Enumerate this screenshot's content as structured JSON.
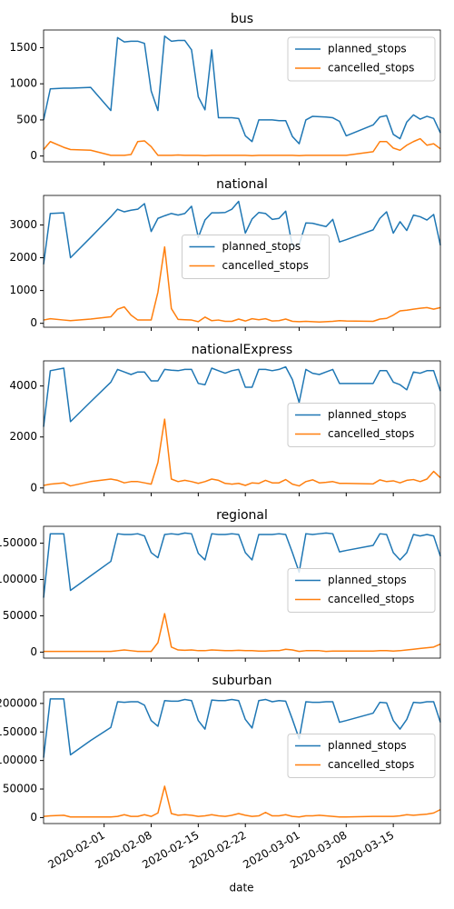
{
  "chart_data": {
    "type": "line",
    "xlabel": "date",
    "x": [
      "2020-01-23",
      "2020-01-24",
      "2020-01-26",
      "2020-01-27",
      "2020-01-30",
      "2020-02-02",
      "2020-02-03",
      "2020-02-04",
      "2020-02-05",
      "2020-02-06",
      "2020-02-07",
      "2020-02-08",
      "2020-02-09",
      "2020-02-10",
      "2020-02-11",
      "2020-02-12",
      "2020-02-13",
      "2020-02-14",
      "2020-02-15",
      "2020-02-16",
      "2020-02-17",
      "2020-02-18",
      "2020-02-19",
      "2020-02-20",
      "2020-02-21",
      "2020-02-22",
      "2020-02-23",
      "2020-02-24",
      "2020-02-25",
      "2020-02-26",
      "2020-02-27",
      "2020-02-28",
      "2020-02-29",
      "2020-03-01",
      "2020-03-02",
      "2020-03-03",
      "2020-03-04",
      "2020-03-05",
      "2020-03-06",
      "2020-03-07",
      "2020-03-08",
      "2020-03-12",
      "2020-03-13",
      "2020-03-14",
      "2020-03-15",
      "2020-03-16",
      "2020-03-17",
      "2020-03-18",
      "2020-03-19",
      "2020-03-20",
      "2020-03-21",
      "2020-03-22"
    ],
    "xlim": [
      "2020-01-23",
      "2020-03-22"
    ],
    "xticks": [
      "2020-02-01",
      "2020-02-08",
      "2020-02-15",
      "2020-02-22",
      "2020-03-01",
      "2020-03-08",
      "2020-03-15"
    ],
    "panels": [
      {
        "title": "bus",
        "ylim": [
          -80,
          1745
        ],
        "yticks": [
          0,
          500,
          1000,
          1500
        ],
        "legend": "upper right",
        "series": [
          {
            "name": "planned_stops",
            "color": "#1f77b4",
            "values": [
              500,
              930,
              940,
              940,
              950,
              630,
              1640,
              1580,
              1590,
              1590,
              1560,
              900,
              630,
              1660,
              1590,
              1600,
              1600,
              1470,
              820,
              640,
              1470,
              530,
              530,
              530,
              520,
              280,
              200,
              500,
              500,
              500,
              490,
              490,
              270,
              170,
              500,
              550,
              545,
              540,
              530,
              480,
              280,
              430,
              540,
              560,
              300,
              240,
              470,
              570,
              510,
              550,
              520,
              320
            ]
          },
          {
            "name": "cancelled_stops",
            "color": "#ff7f0e",
            "values": [
              90,
              200,
              120,
              90,
              80,
              10,
              10,
              10,
              20,
              200,
              210,
              130,
              10,
              10,
              10,
              15,
              10,
              10,
              10,
              5,
              10,
              10,
              10,
              10,
              10,
              10,
              5,
              10,
              10,
              10,
              10,
              10,
              10,
              5,
              10,
              10,
              10,
              10,
              10,
              10,
              10,
              60,
              200,
              200,
              110,
              80,
              150,
              200,
              240,
              150,
              170,
              100
            ]
          }
        ]
      },
      {
        "title": "national",
        "ylim": [
          -120,
          3900
        ],
        "yticks": [
          0,
          1000,
          2000,
          3000
        ],
        "legend": "center",
        "series": [
          {
            "name": "planned_stops",
            "color": "#1f77b4",
            "values": [
              1800,
              3350,
              3370,
              2000,
              2620,
              3250,
              3480,
              3400,
              3450,
              3480,
              3650,
              2800,
              3200,
              3280,
              3350,
              3300,
              3350,
              3570,
              2620,
              3150,
              3370,
              3370,
              3380,
              3480,
              3720,
              2750,
              3180,
              3380,
              3350,
              3170,
              3200,
              3420,
              2350,
              2400,
              3060,
              3050,
              3000,
              2950,
              3170,
              2480,
              2550,
              2850,
              3200,
              3400,
              2750,
              3100,
              2830,
              3300,
              3250,
              3150,
              3320,
              2380
            ]
          },
          {
            "name": "cancelled_stops",
            "color": "#ff7f0e",
            "values": [
              100,
              140,
              100,
              80,
              130,
              200,
              430,
              500,
              250,
              100,
              100,
              100,
              950,
              2330,
              450,
              120,
              110,
              100,
              50,
              190,
              80,
              100,
              60,
              60,
              130,
              70,
              140,
              110,
              140,
              70,
              80,
              130,
              60,
              50,
              60,
              50,
              40,
              50,
              60,
              80,
              70,
              60,
              130,
              150,
              250,
              380,
              400,
              430,
              460,
              480,
              430,
              480
            ]
          }
        ]
      },
      {
        "title": "nationalExpress",
        "ylim": [
          -185,
          4985
        ],
        "yticks": [
          0,
          2000,
          4000
        ],
        "legend": "center right",
        "series": [
          {
            "name": "planned_stops",
            "color": "#1f77b4",
            "values": [
              2400,
              4600,
              4700,
              2600,
              3380,
              4150,
              4650,
              4550,
              4450,
              4550,
              4550,
              4200,
              4200,
              4650,
              4620,
              4600,
              4650,
              4650,
              4100,
              4050,
              4700,
              4600,
              4500,
              4600,
              4650,
              3950,
              3950,
              4650,
              4650,
              4600,
              4650,
              4750,
              4250,
              3350,
              4650,
              4500,
              4450,
              4550,
              4650,
              4100,
              4100,
              4100,
              4600,
              4600,
              4150,
              4050,
              3850,
              4550,
              4500,
              4600,
              4600,
              3800
            ]
          },
          {
            "name": "cancelled_stops",
            "color": "#ff7f0e",
            "values": [
              100,
              150,
              200,
              80,
              250,
              350,
              300,
              200,
              250,
              250,
              200,
              150,
              1000,
              2700,
              350,
              250,
              300,
              250,
              180,
              250,
              350,
              300,
              180,
              150,
              180,
              100,
              200,
              180,
              300,
              200,
              200,
              330,
              150,
              80,
              250,
              320,
              200,
              220,
              250,
              180,
              180,
              160,
              320,
              250,
              280,
              200,
              300,
              330,
              250,
              350,
              650,
              400
            ]
          }
        ]
      },
      {
        "title": "regional",
        "ylim": [
          -8250,
          173250
        ],
        "yticks": [
          0,
          50000,
          100000,
          150000
        ],
        "legend": "center right",
        "series": [
          {
            "name": "planned_stops",
            "color": "#1f77b4",
            "values": [
              75000,
              163000,
              163000,
              85000,
              105000,
              125000,
              163000,
              162000,
              162000,
              163000,
              160000,
              137000,
              130000,
              162000,
              163000,
              162000,
              164000,
              163000,
              136000,
              127000,
              163000,
              162000,
              162000,
              163000,
              162000,
              137000,
              127000,
              162000,
              162000,
              162000,
              163000,
              162000,
              137000,
              110000,
              163000,
              162000,
              163000,
              164000,
              163000,
              138000,
              140000,
              147000,
              163000,
              162000,
              137000,
              127000,
              137000,
              162000,
              160000,
              162000,
              160000,
              132000
            ]
          },
          {
            "name": "cancelled_stops",
            "color": "#ff7f0e",
            "values": [
              1000,
              1000,
              1000,
              1000,
              1000,
              1000,
              2000,
              3000,
              2000,
              1000,
              1000,
              1000,
              13000,
              53000,
              7000,
              3000,
              2500,
              3000,
              2000,
              2000,
              3000,
              2500,
              2000,
              2000,
              2500,
              2000,
              2000,
              1500,
              1500,
              2000,
              2000,
              4000,
              3000,
              1000,
              2000,
              2000,
              2000,
              1000,
              1500,
              1500,
              1500,
              1500,
              2000,
              2000,
              1500,
              2000,
              3000,
              4000,
              5000,
              6000,
              7000,
              11000
            ]
          }
        ]
      },
      {
        "title": "suburban",
        "ylim": [
          -10500,
          220500
        ],
        "yticks": [
          0,
          50000,
          100000,
          150000,
          200000
        ],
        "legend": "center right",
        "series": [
          {
            "name": "planned_stops",
            "color": "#1f77b4",
            "values": [
              105000,
              208000,
              208000,
              110000,
              135000,
              158000,
              203000,
              202000,
              203000,
              203000,
              197000,
              170000,
              160000,
              205000,
              204000,
              204000,
              207000,
              205000,
              170000,
              155000,
              206000,
              205000,
              205000,
              207000,
              205000,
              172000,
              157000,
              205000,
              207000,
              203000,
              205000,
              204000,
              172000,
              138000,
              203000,
              202000,
              202000,
              203000,
              203000,
              167000,
              170000,
              183000,
              202000,
              201000,
              170000,
              155000,
              172000,
              202000,
              201000,
              203000,
              203000,
              167000
            ]
          },
          {
            "name": "cancelled_stops",
            "color": "#ff7f0e",
            "values": [
              2000,
              3000,
              4000,
              1000,
              1000,
              1000,
              2000,
              5000,
              2000,
              2000,
              5000,
              2000,
              8000,
              55000,
              7000,
              4000,
              5000,
              4000,
              2000,
              3000,
              5000,
              3000,
              2000,
              4000,
              7000,
              4000,
              2000,
              3000,
              9000,
              3000,
              3000,
              5000,
              2000,
              1000,
              3000,
              3000,
              4000,
              3000,
              2000,
              1000,
              1000,
              2000,
              2000,
              2000,
              2000,
              3000,
              5000,
              4000,
              5000,
              6000,
              8000,
              14000
            ]
          }
        ]
      }
    ]
  }
}
